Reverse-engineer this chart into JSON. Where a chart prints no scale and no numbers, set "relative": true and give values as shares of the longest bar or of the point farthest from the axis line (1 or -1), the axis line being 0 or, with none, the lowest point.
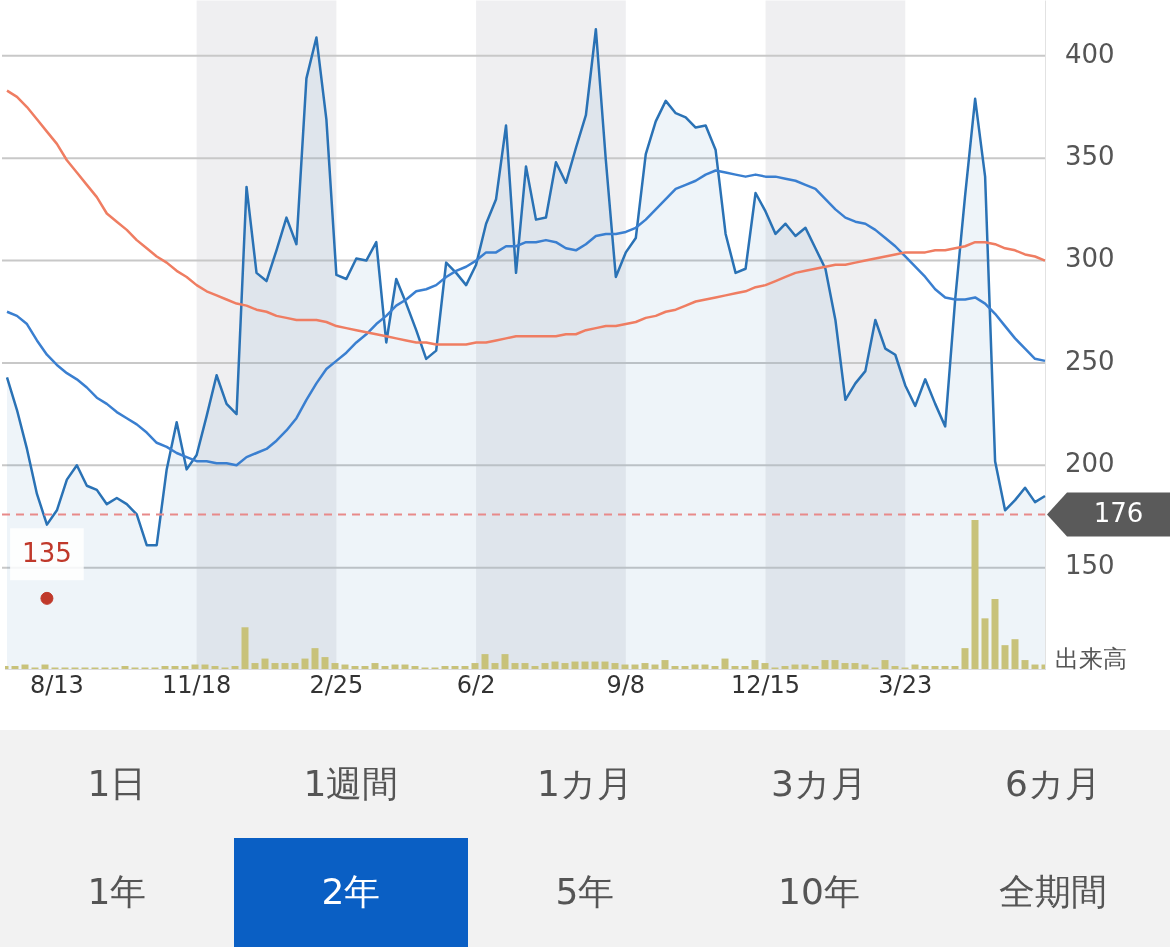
{
  "chart_data": [
    {
      "type": "line",
      "categories": [
        null,
        null,
        null,
        null,
        null,
        "8/13",
        null,
        null,
        null,
        null,
        null,
        null,
        null,
        null,
        null,
        null,
        null,
        null,
        null,
        "11/18",
        null,
        null,
        null,
        null,
        null,
        null,
        null,
        null,
        null,
        null,
        null,
        null,
        null,
        "2/25",
        null,
        null,
        null,
        null,
        null,
        null,
        null,
        null,
        null,
        null,
        null,
        null,
        null,
        "6/2",
        null,
        null,
        null,
        null,
        null,
        null,
        null,
        null,
        null,
        null,
        null,
        null,
        null,
        null,
        "9/8",
        null,
        null,
        null,
        null,
        null,
        null,
        null,
        null,
        null,
        null,
        null,
        null,
        null,
        "12/15",
        null,
        null,
        null,
        null,
        null,
        null,
        null,
        null,
        null,
        null,
        null,
        null,
        null,
        "3/23",
        null,
        null,
        null,
        null,
        null,
        null,
        null,
        null,
        null,
        null,
        null,
        null,
        null,
        null
      ],
      "series": [
        {
          "type": "area",
          "color": "#2a72b5",
          "values": [
            243,
            227,
            208,
            186,
            171,
            178,
            193,
            200,
            190,
            188,
            181,
            184,
            181,
            176,
            161,
            161,
            198,
            221,
            198,
            205,
            224,
            244,
            230,
            225,
            336,
            294,
            290,
            305,
            321,
            308,
            389,
            409,
            369,
            293,
            291,
            301,
            300,
            309,
            260,
            291,
            279,
            266,
            252,
            256,
            299,
            294,
            288,
            298,
            318,
            330,
            366,
            294,
            346,
            320,
            321,
            348,
            338,
            355,
            371,
            413,
            349,
            292,
            304,
            311,
            352,
            368,
            378,
            372,
            370,
            365,
            366,
            354,
            313,
            294,
            296,
            333,
            324,
            313,
            318,
            312,
            316,
            306,
            296,
            271,
            232,
            240,
            246,
            271,
            257,
            254,
            239,
            229,
            242,
            230,
            219,
            281,
            332,
            379,
            341,
            202,
            178,
            183,
            189,
            182,
            185
          ]
        },
        {
          "type": "line",
          "color": "#3a7fd0",
          "values": [
            275,
            273,
            269,
            261,
            254,
            249,
            245,
            242,
            238,
            233,
            230,
            226,
            223,
            220,
            216,
            211,
            209,
            206,
            204,
            202,
            202,
            201,
            201,
            200,
            204,
            206,
            208,
            212,
            217,
            223,
            232,
            240,
            247,
            251,
            255,
            260,
            264,
            269,
            273,
            278,
            281,
            285,
            286,
            288,
            292,
            295,
            297,
            300,
            304,
            304,
            307,
            307,
            309,
            309,
            310,
            309,
            306,
            305,
            308,
            312,
            313,
            313,
            314,
            316,
            320,
            325,
            330,
            335,
            337,
            339,
            342,
            344,
            343,
            342,
            341,
            342,
            341,
            341,
            340,
            339,
            337,
            335,
            330,
            325,
            321,
            319,
            318,
            315,
            311,
            307,
            302,
            297,
            292,
            286,
            282,
            281,
            281,
            282,
            279,
            274,
            268,
            262,
            257,
            252,
            251
          ]
        },
        {
          "type": "line",
          "color": "#ef7d62",
          "values": [
            383,
            380,
            375,
            369,
            363,
            357,
            349,
            343,
            337,
            331,
            323,
            319,
            315,
            310,
            306,
            302,
            299,
            295,
            292,
            288,
            285,
            283,
            281,
            279,
            278,
            276,
            275,
            273,
            272,
            271,
            271,
            271,
            270,
            268,
            267,
            266,
            265,
            264,
            263,
            262,
            261,
            260,
            260,
            259,
            259,
            259,
            259,
            260,
            260,
            261,
            262,
            263,
            263,
            263,
            263,
            263,
            264,
            264,
            266,
            267,
            268,
            268,
            269,
            270,
            272,
            273,
            275,
            276,
            278,
            280,
            281,
            282,
            283,
            284,
            285,
            287,
            288,
            290,
            292,
            294,
            295,
            296,
            297,
            298,
            298,
            299,
            300,
            301,
            302,
            303,
            304,
            304,
            304,
            305,
            305,
            306,
            307,
            309,
            309,
            308,
            306,
            305,
            303,
            302,
            300
          ]
        },
        {
          "type": "scatter",
          "color": "#c0392b",
          "values": [
            null,
            null,
            null,
            null,
            135,
            null,
            null,
            null,
            null,
            null,
            null,
            null,
            null,
            null,
            null,
            null,
            null,
            null,
            null,
            null,
            null,
            null,
            null,
            null,
            null,
            null,
            null,
            null,
            null,
            null,
            null,
            null,
            null,
            null,
            null,
            null,
            null,
            null,
            null,
            null,
            null,
            null,
            null,
            null,
            null,
            null,
            null,
            null,
            null,
            null,
            null,
            null,
            null,
            null,
            null,
            null,
            null,
            null,
            null,
            null,
            null,
            null,
            null,
            null,
            null,
            null,
            null,
            null,
            null,
            null,
            null,
            null,
            null,
            null,
            null,
            null,
            null,
            null,
            null,
            null,
            null,
            null,
            null,
            null,
            null,
            null,
            null,
            null,
            null,
            null,
            null,
            null,
            null,
            null,
            null,
            null,
            null,
            null,
            null,
            null,
            null,
            null,
            null,
            null,
            null
          ],
          "value_labels": [
            null,
            null,
            null,
            null,
            "135",
            null,
            null,
            null,
            null,
            null,
            null,
            null,
            null,
            null,
            null,
            null,
            null,
            null,
            null,
            null,
            null,
            null,
            null,
            null,
            null,
            null,
            null,
            null,
            null,
            null,
            null,
            null,
            null,
            null,
            null,
            null,
            null,
            null,
            null,
            null,
            null,
            null,
            null,
            null,
            null,
            null,
            null,
            null,
            null,
            null,
            null,
            null,
            null,
            null,
            null,
            null,
            null,
            null,
            null,
            null,
            null,
            null,
            null,
            null,
            null,
            null,
            null,
            null,
            null,
            null,
            null,
            null,
            null,
            null,
            null,
            null,
            null,
            null,
            null,
            null,
            null,
            null,
            null,
            null,
            null,
            null,
            null,
            null,
            null,
            null,
            null,
            null,
            null,
            null,
            null,
            null,
            null,
            null,
            null,
            null,
            null,
            null,
            null,
            null,
            null
          ]
        }
      ],
      "ylim": [
        100,
        427
      ],
      "yticks": [
        150,
        200,
        250,
        300,
        350,
        400
      ],
      "grid": "y",
      "legend": false,
      "bands": [
        {
          "axis": "x",
          "from": "11/18",
          "to": "2/25",
          "color": "#e9e9ec"
        },
        {
          "axis": "x",
          "from": "6/2",
          "to": "9/8",
          "color": "#e9e9ec"
        },
        {
          "axis": "x",
          "from": "12/15",
          "to": "3/23",
          "color": "#e9e9ec"
        }
      ],
      "ref_lines": [
        {
          "axis": "y",
          "value": 176,
          "label": "176",
          "color": "#e88a8a",
          "line_style": "dashed"
        }
      ]
    },
    {
      "type": "bar",
      "relative": true,
      "ylabel": "出来高",
      "color": "#c8c27a",
      "categories": [
        null,
        null,
        null,
        null,
        null,
        null,
        null,
        null,
        null,
        null,
        null,
        null,
        null,
        null,
        null,
        null,
        null,
        null,
        null,
        null,
        null,
        null,
        null,
        null,
        null,
        null,
        null,
        null,
        null,
        null,
        null,
        null,
        null,
        null,
        null,
        null,
        null,
        null,
        null,
        null,
        null,
        null,
        null,
        null,
        null,
        null,
        null,
        null,
        null,
        null,
        null,
        null,
        null,
        null,
        null,
        null,
        null,
        null,
        null,
        null,
        null,
        null,
        null,
        null,
        null,
        null,
        null,
        null,
        null,
        null,
        null,
        null,
        null,
        null,
        null,
        null,
        null,
        null,
        null,
        null,
        null,
        null,
        null,
        null,
        null,
        null,
        null,
        null,
        null,
        null,
        null,
        null,
        null,
        null,
        null,
        null,
        null,
        null,
        null,
        null,
        null,
        null,
        null,
        null,
        null
      ],
      "values": [
        0.02,
        0.02,
        0.03,
        0.01,
        0.03,
        0.01,
        0.01,
        0.01,
        0.01,
        0.01,
        0.01,
        0.01,
        0.02,
        0.01,
        0.01,
        0.01,
        0.02,
        0.02,
        0.02,
        0.03,
        0.03,
        0.02,
        0.01,
        0.02,
        0.28,
        0.04,
        0.07,
        0.04,
        0.04,
        0.04,
        0.07,
        0.14,
        0.08,
        0.04,
        0.03,
        0.02,
        0.02,
        0.04,
        0.02,
        0.03,
        0.03,
        0.02,
        0.01,
        0.01,
        0.02,
        0.02,
        0.02,
        0.04,
        0.1,
        0.04,
        0.1,
        0.04,
        0.04,
        0.02,
        0.04,
        0.05,
        0.04,
        0.05,
        0.05,
        0.05,
        0.05,
        0.04,
        0.03,
        0.03,
        0.04,
        0.03,
        0.06,
        0.02,
        0.02,
        0.03,
        0.03,
        0.02,
        0.07,
        0.02,
        0.02,
        0.06,
        0.04,
        0.01,
        0.02,
        0.03,
        0.03,
        0.02,
        0.06,
        0.06,
        0.04,
        0.04,
        0.03,
        0.01,
        0.06,
        0.02,
        0.01,
        0.03,
        0.02,
        0.02,
        0.02,
        0.02,
        0.14,
        1,
        0.34,
        0.47,
        0.16,
        0.2,
        0.06,
        0.03,
        0.03
      ]
    },
    {
      "type": "other",
      "categories": [
        "1日",
        "1週間",
        "1カ月",
        "3カ月",
        "6カ月",
        "1年",
        "2年",
        "5年",
        "10年",
        "全期間"
      ],
      "colors": [
        "#f2f2f2",
        "#f2f2f2",
        "#f2f2f2",
        "#f2f2f2",
        "#f2f2f2",
        "#f2f2f2",
        "#0a5fc4",
        "#f2f2f2",
        "#f2f2f2",
        "#f2f2f2"
      ]
    }
  ]
}
